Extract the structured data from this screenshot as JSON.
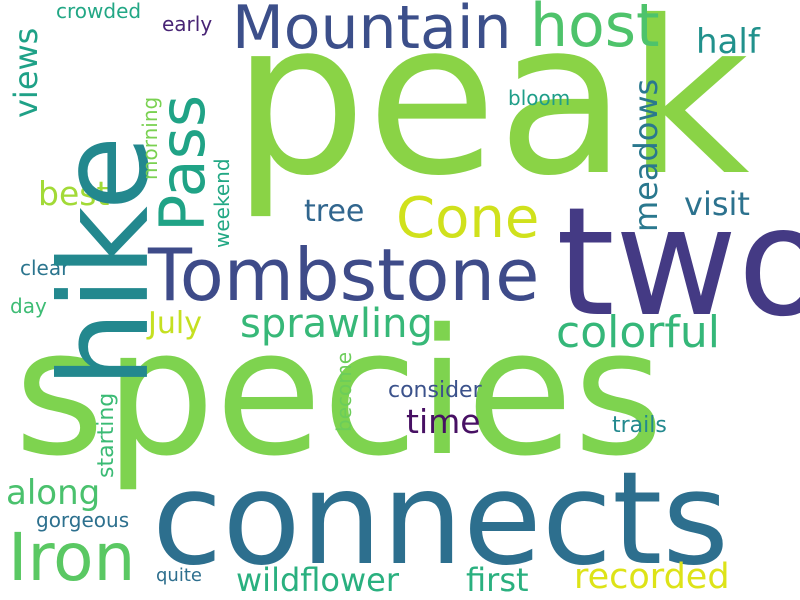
{
  "words": [
    {
      "text": "peak",
      "color": "#8ad346"
    },
    {
      "text": "species",
      "color": "#7ed34f"
    },
    {
      "text": "hike",
      "color": "#23888e"
    },
    {
      "text": "two",
      "color": "#443a84"
    },
    {
      "text": "connects",
      "color": "#2d6f8e"
    },
    {
      "text": "Tombstone",
      "color": "#3e4b89"
    },
    {
      "text": "Mountain",
      "color": "#3c4f8a"
    },
    {
      "text": "Iron",
      "color": "#5ac863"
    },
    {
      "text": "Pass",
      "color": "#20a386"
    },
    {
      "text": "Cone",
      "color": "#d0e11c"
    },
    {
      "text": "host",
      "color": "#4ec36b"
    },
    {
      "text": "colorful",
      "color": "#35b779"
    },
    {
      "text": "sprawling",
      "color": "#37b878"
    },
    {
      "text": "recorded",
      "color": "#dde318"
    },
    {
      "text": "wildflower",
      "color": "#2ab07f"
    },
    {
      "text": "first",
      "color": "#2ab07f"
    },
    {
      "text": "along",
      "color": "#4ac16d"
    },
    {
      "text": "views",
      "color": "#1fa187"
    },
    {
      "text": "meadows",
      "color": "#2a788e"
    },
    {
      "text": "visit",
      "color": "#2c728e"
    },
    {
      "text": "half",
      "color": "#21918c"
    },
    {
      "text": "best",
      "color": "#a2da37"
    },
    {
      "text": "tree",
      "color": "#31668e"
    },
    {
      "text": "July",
      "color": "#c5e021"
    },
    {
      "text": "time",
      "color": "#471063"
    },
    {
      "text": "consider",
      "color": "#3b528b"
    },
    {
      "text": "trails",
      "color": "#23898e"
    },
    {
      "text": "starting",
      "color": "#3bbb75"
    },
    {
      "text": "gorgeous",
      "color": "#2d708e"
    },
    {
      "text": "quite",
      "color": "#2e6f8e"
    },
    {
      "text": "crowded",
      "color": "#22a785"
    },
    {
      "text": "early",
      "color": "#482475"
    },
    {
      "text": "bloom",
      "color": "#1f9e89"
    },
    {
      "text": "morning",
      "color": "#7ad151"
    },
    {
      "text": "weekend",
      "color": "#22a884"
    },
    {
      "text": "clear",
      "color": "#2b758e"
    },
    {
      "text": "day",
      "color": "#3dbc74"
    },
    {
      "text": "become",
      "color": "#6ccd5a"
    }
  ]
}
